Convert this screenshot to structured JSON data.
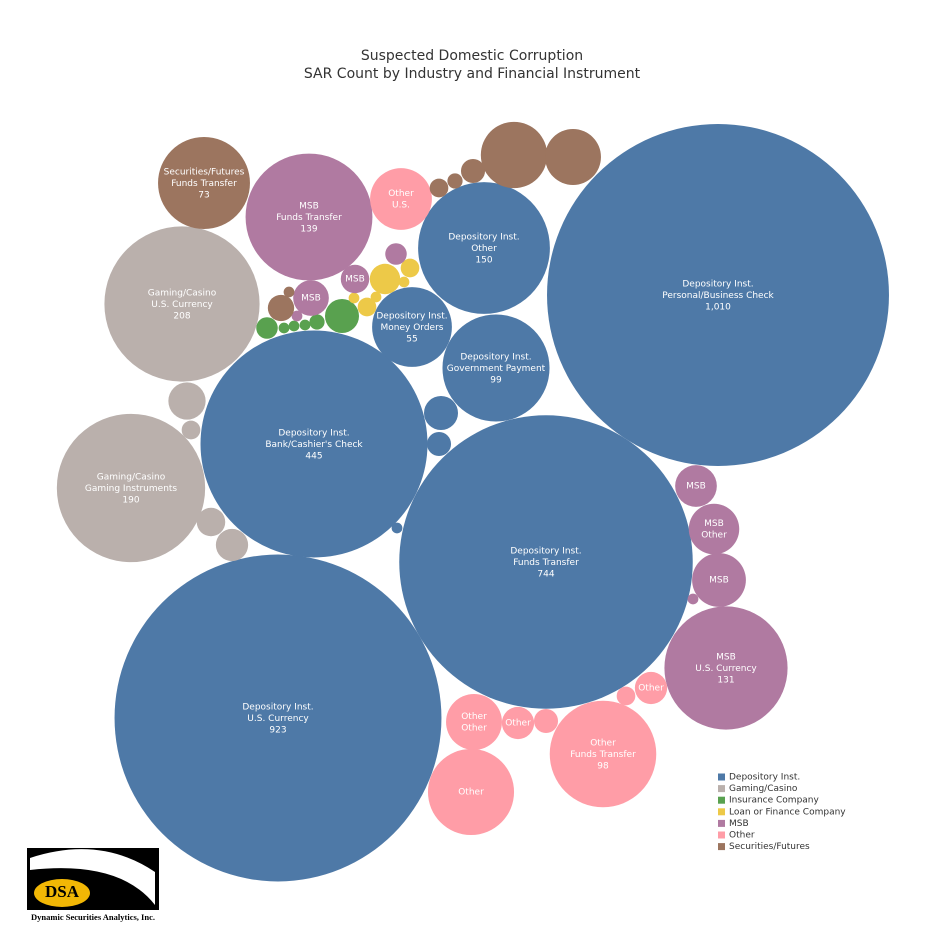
{
  "chart_data": {
    "type": "bubble",
    "title": [
      "Suspected Domestic Corruption",
      "SAR Count by Industry and Financial Instrument"
    ],
    "series": [
      {
        "name": "Depository Inst.",
        "color": "#4e79a7",
        "values": [
          1010,
          923,
          744,
          445,
          150,
          99,
          55,
          10,
          5,
          1
        ],
        "labels": [
          [
            "Depository Inst.",
            "Personal/Business Check"
          ],
          [
            "Depository Inst.",
            "U.S. Currency"
          ],
          [
            "Depository Inst.",
            "Funds Transfer"
          ],
          [
            "Depository Inst.",
            "Bank/Cashier's Check"
          ],
          [
            "Depository Inst.",
            "Other"
          ],
          [
            "Depository Inst.",
            "Government Payment"
          ],
          [
            "Depository Inst.",
            "Money Orders"
          ],
          null,
          null,
          null
        ],
        "value_labels": [
          "1,010",
          "923",
          "744",
          "445",
          "150",
          "99",
          "55",
          null,
          null,
          null
        ]
      },
      {
        "name": "Gaming/Casino",
        "color": "#bab0ac",
        "values": [
          208,
          190,
          12,
          3,
          7,
          9
        ],
        "labels": [
          [
            "Gaming/Casino",
            "U.S. Currency"
          ],
          [
            "Gaming/Casino",
            "Gaming Instruments"
          ],
          null,
          null,
          null,
          null
        ],
        "value_labels": [
          "208",
          "190",
          null,
          null,
          null,
          null
        ]
      },
      {
        "name": "Insurance Company",
        "color": "#59a14f",
        "values": [
          10,
          4,
          1,
          1,
          1,
          2
        ],
        "labels": [
          null,
          null,
          null,
          null,
          null,
          null
        ],
        "value_labels": [
          null,
          null,
          null,
          null,
          null,
          null
        ]
      },
      {
        "name": "Loan or Finance Company",
        "color": "#edc948",
        "values": [
          8,
          3,
          3,
          1,
          1,
          1
        ],
        "labels": [
          null,
          null,
          null,
          null,
          null,
          null
        ],
        "value_labels": [
          null,
          null,
          null,
          null,
          null,
          null
        ]
      },
      {
        "name": "MSB",
        "color": "#b07aa1",
        "values": [
          139,
          131,
          15,
          22,
          25,
          11,
          7,
          4,
          1,
          1
        ],
        "labels": [
          [
            "MSB",
            "Funds Transfer"
          ],
          [
            "MSB",
            "U.S. Currency"
          ],
          [
            "MSB"
          ],
          [
            "MSB",
            "Other"
          ],
          [
            "MSB"
          ],
          [
            "MSB"
          ],
          [
            "MSB"
          ],
          null,
          null,
          null
        ],
        "value_labels": [
          "139",
          "131",
          null,
          null,
          null,
          null,
          null,
          null,
          null,
          null
        ]
      },
      {
        "name": "Other",
        "color": "#ff9da7",
        "values": [
          98,
          33,
          27,
          64,
          9,
          9,
          5,
          3
        ],
        "labels": [
          [
            "Other",
            "Funds Transfer"
          ],
          [
            "Other",
            "U.S."
          ],
          [
            "Other",
            "Other"
          ],
          [
            "Other"
          ],
          [
            "Other"
          ],
          [
            "Other"
          ],
          null,
          null
        ],
        "value_labels": [
          "98",
          null,
          null,
          null,
          null,
          null,
          null,
          null
        ]
      },
      {
        "name": "Securities/Futures",
        "color": "#9c755f",
        "values": [
          73,
          38,
          27,
          5,
          2,
          3,
          6,
          1
        ],
        "labels": [
          [
            "Securities/Futures",
            "Funds Transfer"
          ],
          null,
          null,
          null,
          null,
          null,
          null,
          null
        ],
        "value_labels": [
          "73",
          null,
          null,
          null,
          null,
          null,
          null,
          null
        ]
      }
    ],
    "legend": "bottom-right"
  },
  "logo": {
    "mark": "DSA",
    "company": "Dynamic Securities Analytics, Inc."
  }
}
